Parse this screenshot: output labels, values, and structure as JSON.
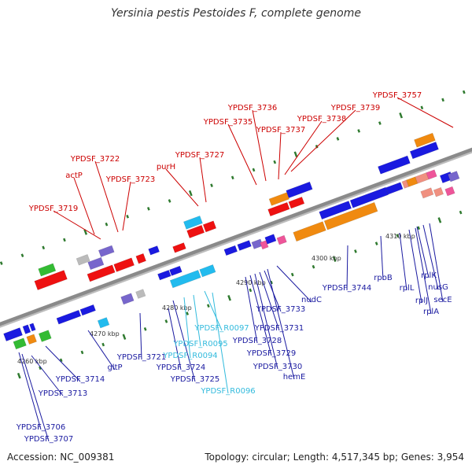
{
  "title": "Yersinia pestis Pestoides F, complete genome",
  "footer": {
    "accession": "Accession: NC_009381",
    "summary": "Topology: circular; Length: 4,517,345 bp; Genes: 3,954"
  },
  "colors": {
    "backbone": "#8a8a8a",
    "tick_dot": "#2f7a2f",
    "label_top": "#cc0000",
    "label_bottom": "#1a1aa0",
    "label_rna": "#33bbdd",
    "red": "#ee1111",
    "blue": "#1a1ae0",
    "orange": "#f08a10",
    "cyan": "#22bbee",
    "purple": "#7766cc",
    "green": "#33bb33",
    "grey": "#bbbbbb",
    "pink": "#ee5599",
    "salmon": "#f09080"
  },
  "scale_labels": [
    "4260 kbp",
    "4270 kbp",
    "4280 kbp",
    "4290 kbp",
    "4300 kbp",
    "4310 kbp"
  ],
  "top_labels": [
    "YPDSF_3719",
    "actP",
    "YPDSF_3722",
    "YPDSF_3723",
    "purH",
    "YPDSF_3727",
    "YPDSF_3735",
    "YPDSF_3736",
    "YPDSF_3737",
    "YPDSF_3738",
    "YPDSF_3739",
    "YPDSF_3757"
  ],
  "bottom_labels": [
    "YPDSF_3706",
    "YPDSF_3707",
    "YPDSF_3713",
    "YPDSF_3714",
    "gltP",
    "YPDSF_3721",
    "YPDSF_3724",
    "YPDSF_3725",
    "YPDSF_3728",
    "YPDSF_3729",
    "YPDSF_3730",
    "YPDSF_3731",
    "YPDSF_3733",
    "hemE",
    "nudC",
    "YPDSF_3744",
    "rpoB",
    "rplL",
    "rplJ",
    "rplA",
    "rplK",
    "nusG",
    "secE"
  ],
  "rna_labels": [
    "YPDSF_R0097",
    "YPDSF_R0095",
    "YPDSF_R0094",
    "YPDSF_R0096"
  ]
}
